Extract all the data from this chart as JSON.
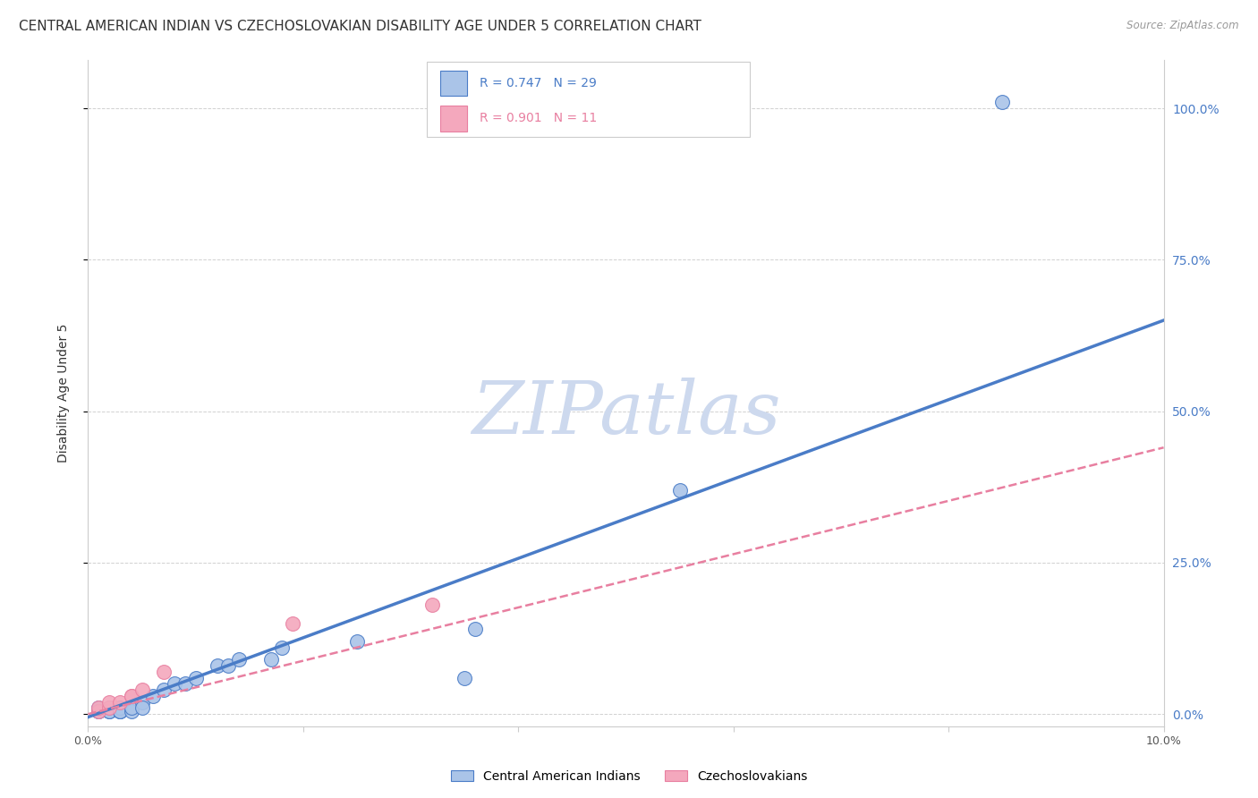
{
  "title": "CENTRAL AMERICAN INDIAN VS CZECHOSLOVAKIAN DISABILITY AGE UNDER 5 CORRELATION CHART",
  "source": "Source: ZipAtlas.com",
  "ylabel": "Disability Age Under 5",
  "watermark": "ZIPatlas",
  "xlim": [
    0.0,
    0.1
  ],
  "ylim": [
    -0.02,
    1.08
  ],
  "xticks": [
    0.0,
    0.02,
    0.04,
    0.06,
    0.08,
    0.1
  ],
  "xtick_labels": [
    "0.0%",
    "",
    "",
    "",
    "",
    "10.0%"
  ],
  "ytick_labels_right": [
    "0.0%",
    "25.0%",
    "50.0%",
    "75.0%",
    "100.0%"
  ],
  "yticks_right": [
    0.0,
    0.25,
    0.5,
    0.75,
    1.0
  ],
  "legend_blue_r": "0.747",
  "legend_blue_n": "29",
  "legend_pink_r": "0.901",
  "legend_pink_n": "11",
  "legend_label_blue": "Central American Indians",
  "legend_label_pink": "Czechoslovakians",
  "blue_scatter_x": [
    0.001,
    0.001,
    0.001,
    0.002,
    0.002,
    0.002,
    0.003,
    0.003,
    0.003,
    0.003,
    0.004,
    0.004,
    0.005,
    0.005,
    0.006,
    0.007,
    0.008,
    0.009,
    0.01,
    0.012,
    0.013,
    0.014,
    0.017,
    0.018,
    0.025,
    0.035,
    0.036,
    0.055,
    0.085
  ],
  "blue_scatter_y": [
    0.005,
    0.01,
    0.005,
    0.005,
    0.01,
    0.005,
    0.005,
    0.005,
    0.01,
    0.005,
    0.005,
    0.01,
    0.02,
    0.01,
    0.03,
    0.04,
    0.05,
    0.05,
    0.06,
    0.08,
    0.08,
    0.09,
    0.09,
    0.11,
    0.12,
    0.06,
    0.14,
    0.37,
    1.01
  ],
  "pink_scatter_x": [
    0.001,
    0.001,
    0.002,
    0.002,
    0.003,
    0.004,
    0.004,
    0.005,
    0.007,
    0.019,
    0.032
  ],
  "pink_scatter_y": [
    0.005,
    0.01,
    0.01,
    0.02,
    0.02,
    0.03,
    0.03,
    0.04,
    0.07,
    0.15,
    0.18
  ],
  "blue_line_x0": 0.0,
  "blue_line_y0": -0.005,
  "blue_line_x1": 0.1,
  "blue_line_y1": 0.65,
  "pink_line_x0": 0.0,
  "pink_line_y0": 0.0,
  "pink_line_x1": 0.1,
  "pink_line_y1": 0.44,
  "blue_line_color": "#4a7cc7",
  "pink_line_color": "#e87fa0",
  "blue_scatter_color": "#aac4e8",
  "pink_scatter_color": "#f4a8bd",
  "grid_color": "#cccccc",
  "background_color": "#ffffff",
  "title_fontsize": 11,
  "axis_label_fontsize": 10,
  "tick_fontsize": 9,
  "watermark_color": "#cdd9ee",
  "watermark_fontsize": 60
}
